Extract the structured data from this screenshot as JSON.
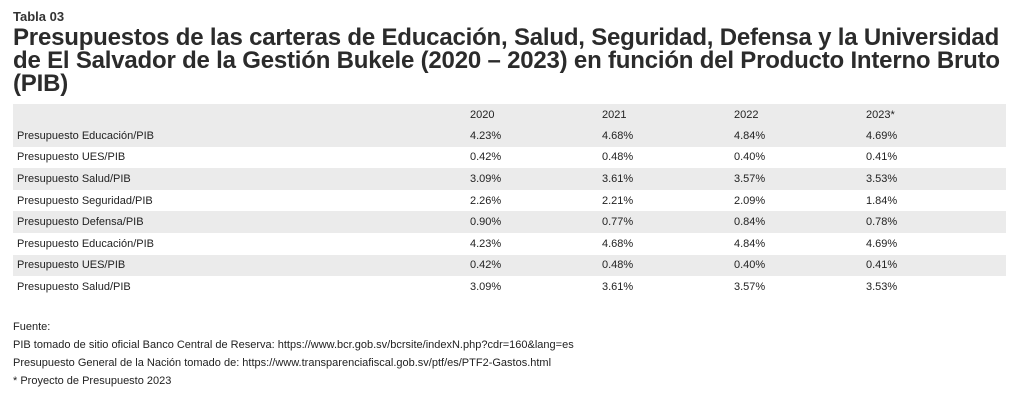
{
  "table_label": "Tabla 03",
  "title": "Presupuestos de las carteras de Educación, Salud, Seguridad, Defensa y la Universidad de El Salvador de la Gestión Bukele (2020 – 2023) en función del Producto Interno Bruto (PIB)",
  "columns": [
    "",
    "2020",
    "2021",
    "2022",
    "2023*"
  ],
  "rows": [
    {
      "label": "Presupuesto Educación/PIB",
      "values": [
        "4.23%",
        "4.68%",
        "4.84%",
        "4.69%"
      ]
    },
    {
      "label": "Presupuesto UES/PIB",
      "values": [
        "0.42%",
        "0.48%",
        "0.40%",
        "0.41%"
      ]
    },
    {
      "label": "Presupuesto Salud/PIB",
      "values": [
        "3.09%",
        "3.61%",
        "3.57%",
        "3.53%"
      ]
    },
    {
      "label": "Presupuesto Seguridad/PIB",
      "values": [
        "2.26%",
        "2.21%",
        "2.09%",
        "1.84%"
      ]
    },
    {
      "label": "Presupuesto Defensa/PIB",
      "values": [
        "0.90%",
        "0.77%",
        "0.84%",
        "0.78%"
      ]
    },
    {
      "label": "Presupuesto Educación/PIB",
      "values": [
        "4.23%",
        "4.68%",
        "4.84%",
        "4.69%"
      ]
    },
    {
      "label": "Presupuesto UES/PIB",
      "values": [
        "0.42%",
        "0.48%",
        "0.40%",
        "0.41%"
      ]
    },
    {
      "label": "Presupuesto Salud/PIB",
      "values": [
        "3.09%",
        "3.61%",
        "3.57%",
        "3.53%"
      ]
    }
  ],
  "notes": [
    "Fuente:",
    "PIB tomado de sitio oficial Banco Central de Reserva: https://www.bcr.gob.sv/bcrsite/indexN.php?cdr=160&lang=es",
    "Presupuesto General de la Nación tomado de: https://www.transparenciafiscal.gob.sv/ptf/es/PTF2-Gastos.html",
    "* Proyecto de Presupuesto 2023"
  ],
  "colors": {
    "row_shade": "#ebebeb",
    "text": "#222222"
  }
}
